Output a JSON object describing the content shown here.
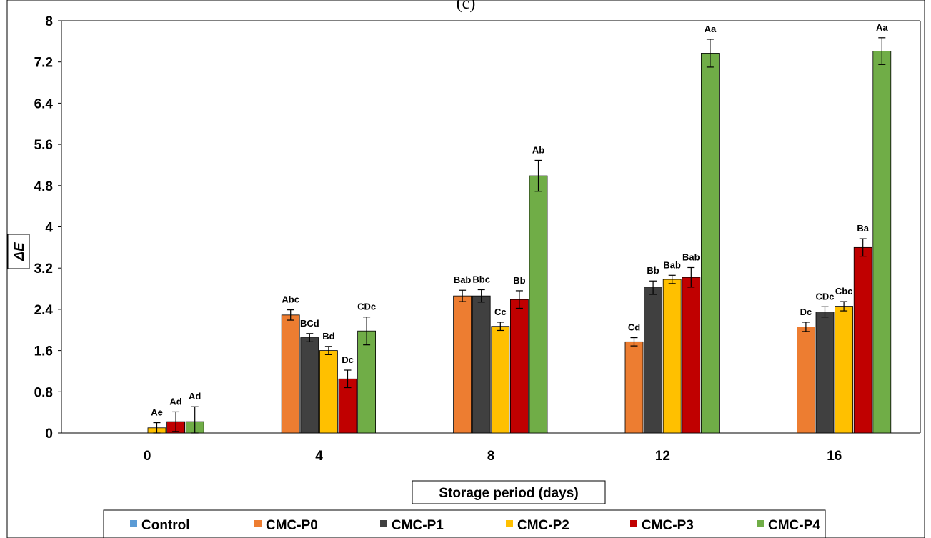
{
  "chart_data": {
    "type": "bar",
    "title": "(c)",
    "xlabel": "Storage period (days)",
    "ylabel": "ΔE",
    "ylim": [
      0,
      8
    ],
    "yticks": [
      "0",
      "0.8",
      "1.6",
      "2.4",
      "3.2",
      "4",
      "4.8",
      "5.6",
      "6.4",
      "7.2",
      "8"
    ],
    "categories": [
      "0",
      "4",
      "8",
      "12",
      "16"
    ],
    "grid": false,
    "legend_position": "bottom",
    "series": [
      {
        "name": "Control",
        "color": "#5b9bd5",
        "values": [
          0,
          0,
          0,
          0,
          0
        ],
        "errors": [
          0,
          0,
          0,
          0,
          0
        ],
        "labels": [
          "",
          "",
          "",
          "",
          ""
        ]
      },
      {
        "name": "CMC-P0",
        "color": "#ed7d31",
        "values": [
          0,
          2.29,
          2.66,
          1.77,
          2.06
        ],
        "errors": [
          0,
          0.1,
          0.11,
          0.08,
          0.09
        ],
        "labels": [
          "",
          "Abc",
          "Bab",
          "Cd",
          "Dc"
        ]
      },
      {
        "name": "CMC-P1",
        "color": "#404040",
        "values": [
          0,
          1.85,
          2.66,
          2.82,
          2.35
        ],
        "errors": [
          0,
          0.08,
          0.12,
          0.13,
          0.1
        ],
        "labels": [
          "",
          "BCd",
          "Bbc",
          "Bb",
          "CDc"
        ]
      },
      {
        "name": "CMC-P2",
        "color": "#ffc000",
        "values": [
          0.1,
          1.6,
          2.07,
          2.98,
          2.46
        ],
        "errors": [
          0.1,
          0.08,
          0.08,
          0.08,
          0.09
        ],
        "labels": [
          "Ae",
          "Bd",
          "Cc",
          "Bab",
          "Cbc"
        ]
      },
      {
        "name": "CMC-P3",
        "color": "#c00000",
        "values": [
          0.22,
          1.05,
          2.59,
          3.02,
          3.6
        ],
        "errors": [
          0.19,
          0.17,
          0.17,
          0.19,
          0.17
        ],
        "labels": [
          "Ad",
          "Dc",
          "Bb",
          "Bab",
          "Ba"
        ]
      },
      {
        "name": "CMC-P4",
        "color": "#70ad47",
        "values": [
          0.22,
          1.98,
          4.99,
          7.37,
          7.41
        ],
        "errors": [
          0.29,
          0.27,
          0.3,
          0.27,
          0.26
        ],
        "labels": [
          "Ad",
          "CDc",
          "Ab",
          "Aa",
          "Aa"
        ]
      }
    ]
  }
}
